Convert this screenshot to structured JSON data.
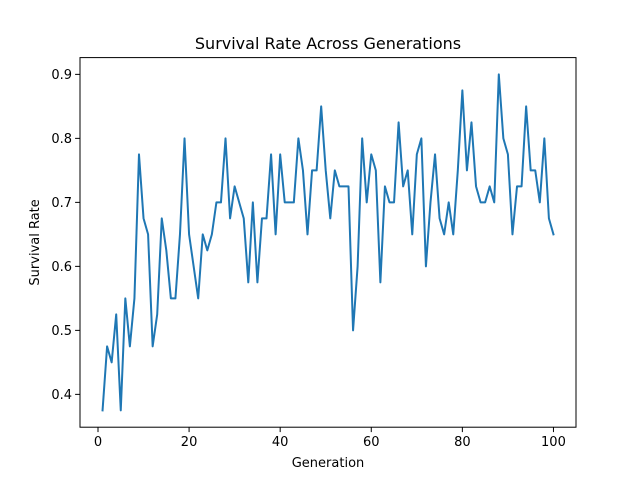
{
  "chart_data": {
    "type": "line",
    "title": "Survival Rate Across Generations",
    "xlabel": "Generation",
    "ylabel": "Survival Rate",
    "xlim": [
      -3.95,
      104.95
    ],
    "ylim": [
      0.3487,
      0.9262
    ],
    "xticks": [
      0,
      20,
      40,
      60,
      80,
      100
    ],
    "yticks": [
      0.4,
      0.5,
      0.6,
      0.7,
      0.8,
      0.9
    ],
    "ytick_labels": [
      "0.4",
      "0.5",
      "0.6",
      "0.7",
      "0.8",
      "0.9"
    ],
    "grid": false,
    "series": [
      {
        "color": "#1f77b4",
        "x": [
          1,
          2,
          3,
          4,
          5,
          6,
          7,
          8,
          9,
          10,
          11,
          12,
          13,
          14,
          15,
          16,
          17,
          18,
          19,
          20,
          21,
          22,
          23,
          24,
          25,
          26,
          27,
          28,
          29,
          30,
          31,
          32,
          33,
          34,
          35,
          36,
          37,
          38,
          39,
          40,
          41,
          42,
          43,
          44,
          45,
          46,
          47,
          48,
          49,
          50,
          51,
          52,
          53,
          54,
          55,
          56,
          57,
          58,
          59,
          60,
          61,
          62,
          63,
          64,
          65,
          66,
          67,
          68,
          69,
          70,
          71,
          72,
          73,
          74,
          75,
          76,
          77,
          78,
          79,
          80,
          81,
          82,
          83,
          84,
          85,
          86,
          87,
          88,
          89,
          90,
          91,
          92,
          93,
          94,
          95,
          96,
          97,
          98,
          99,
          100
        ],
        "values": [
          0.375,
          0.475,
          0.45,
          0.525,
          0.375,
          0.55,
          0.475,
          0.55,
          0.775,
          0.675,
          0.65,
          0.475,
          0.525,
          0.675,
          0.625,
          0.55,
          0.55,
          0.65,
          0.8,
          0.65,
          0.6,
          0.55,
          0.65,
          0.625,
          0.65,
          0.7,
          0.7,
          0.8,
          0.675,
          0.725,
          0.7,
          0.675,
          0.575,
          0.7,
          0.575,
          0.675,
          0.675,
          0.775,
          0.65,
          0.775,
          0.7,
          0.7,
          0.7,
          0.8,
          0.75,
          0.65,
          0.75,
          0.75,
          0.85,
          0.75,
          0.675,
          0.75,
          0.725,
          0.725,
          0.725,
          0.5,
          0.6,
          0.8,
          0.7,
          0.775,
          0.75,
          0.575,
          0.725,
          0.7,
          0.7,
          0.825,
          0.725,
          0.75,
          0.65,
          0.775,
          0.8,
          0.6,
          0.7,
          0.775,
          0.675,
          0.65,
          0.7,
          0.65,
          0.75,
          0.875,
          0.75,
          0.825,
          0.725,
          0.7,
          0.7,
          0.725,
          0.7,
          0.9,
          0.8,
          0.775,
          0.65,
          0.725,
          0.725,
          0.85,
          0.75,
          0.75,
          0.7,
          0.8,
          0.675,
          0.65
        ]
      }
    ]
  }
}
